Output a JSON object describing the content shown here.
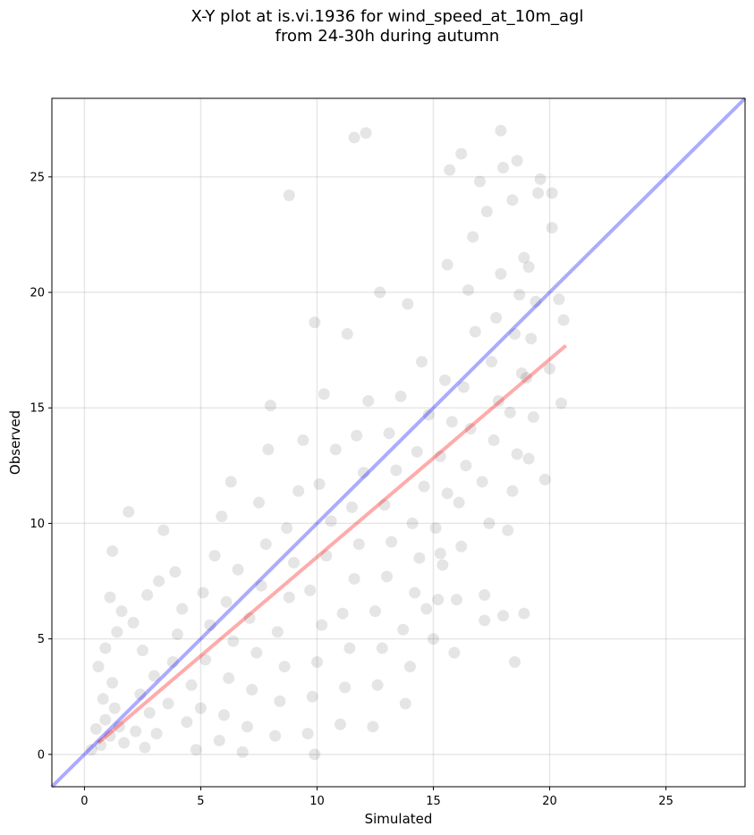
{
  "chart_data": {
    "type": "scatter",
    "title_line1": "X-Y plot at is.vi.1936 for wind_speed_at_10m_agl",
    "title_line2": "from 24-30h during autumn",
    "xlabel": "Simulated",
    "ylabel": "Observed",
    "xlim": [
      -1.4,
      28.4
    ],
    "ylim": [
      -1.4,
      28.4
    ],
    "xticks": [
      0,
      5,
      10,
      15,
      20,
      25
    ],
    "yticks": [
      0,
      5,
      10,
      15,
      20,
      25
    ],
    "grid": true,
    "point_color": "#000000",
    "point_alpha": 0.1,
    "identity_line": {
      "color": "#0000ff",
      "alpha": 0.33,
      "from": [
        -1.4,
        -1.4
      ],
      "to": [
        28.4,
        28.4
      ]
    },
    "regression_line": {
      "color": "#ff0000",
      "alpha": 0.33,
      "from": [
        0.6,
        0.5
      ],
      "to": [
        20.7,
        17.7
      ]
    },
    "points": [
      [
        0.3,
        0.2
      ],
      [
        0.5,
        1.1
      ],
      [
        0.7,
        0.4
      ],
      [
        0.9,
        1.5
      ],
      [
        1.1,
        0.8
      ],
      [
        1.3,
        2.0
      ],
      [
        0.8,
        2.4
      ],
      [
        1.5,
        1.2
      ],
      [
        1.7,
        0.5
      ],
      [
        1.2,
        3.1
      ],
      [
        0.6,
        3.8
      ],
      [
        0.9,
        4.6
      ],
      [
        1.4,
        5.3
      ],
      [
        1.6,
        6.2
      ],
      [
        1.1,
        6.8
      ],
      [
        1.2,
        8.8
      ],
      [
        1.9,
        10.5
      ],
      [
        2.2,
        1.0
      ],
      [
        2.4,
        2.6
      ],
      [
        2.6,
        0.3
      ],
      [
        2.8,
        1.8
      ],
      [
        3.0,
        3.4
      ],
      [
        2.5,
        4.5
      ],
      [
        2.1,
        5.7
      ],
      [
        2.7,
        6.9
      ],
      [
        3.2,
        7.5
      ],
      [
        3.4,
        9.7
      ],
      [
        3.1,
        0.9
      ],
      [
        3.6,
        2.2
      ],
      [
        3.8,
        4.0
      ],
      [
        4.0,
        5.2
      ],
      [
        4.2,
        6.3
      ],
      [
        3.9,
        7.9
      ],
      [
        4.4,
        1.4
      ],
      [
        4.6,
        3.0
      ],
      [
        4.8,
        0.2
      ],
      [
        5.0,
        2.0
      ],
      [
        5.2,
        4.1
      ],
      [
        5.4,
        5.6
      ],
      [
        5.1,
        7.0
      ],
      [
        5.6,
        8.6
      ],
      [
        5.8,
        0.6
      ],
      [
        6.0,
        1.7
      ],
      [
        6.2,
        3.3
      ],
      [
        6.4,
        4.9
      ],
      [
        6.1,
        6.6
      ],
      [
        6.6,
        8.0
      ],
      [
        5.9,
        10.3
      ],
      [
        6.3,
        11.8
      ],
      [
        6.8,
        0.1
      ],
      [
        7.0,
        1.2
      ],
      [
        7.2,
        2.8
      ],
      [
        7.4,
        4.4
      ],
      [
        7.1,
        5.9
      ],
      [
        7.6,
        7.3
      ],
      [
        7.8,
        9.1
      ],
      [
        7.5,
        10.9
      ],
      [
        7.9,
        13.2
      ],
      [
        8.0,
        15.1
      ],
      [
        8.2,
        0.8
      ],
      [
        8.4,
        2.3
      ],
      [
        8.6,
        3.8
      ],
      [
        8.3,
        5.3
      ],
      [
        8.8,
        6.8
      ],
      [
        9.0,
        8.3
      ],
      [
        8.7,
        9.8
      ],
      [
        9.2,
        11.4
      ],
      [
        9.4,
        13.6
      ],
      [
        8.8,
        24.2
      ],
      [
        9.6,
        0.9
      ],
      [
        9.8,
        2.5
      ],
      [
        9.9,
        0.0
      ],
      [
        10.0,
        4.0
      ],
      [
        10.2,
        5.6
      ],
      [
        9.7,
        7.1
      ],
      [
        10.4,
        8.6
      ],
      [
        10.6,
        10.1
      ],
      [
        10.1,
        11.7
      ],
      [
        10.8,
        13.2
      ],
      [
        10.3,
        15.6
      ],
      [
        9.9,
        18.7
      ],
      [
        11.0,
        1.3
      ],
      [
        11.2,
        2.9
      ],
      [
        11.4,
        4.6
      ],
      [
        11.1,
        6.1
      ],
      [
        11.6,
        7.6
      ],
      [
        11.8,
        9.1
      ],
      [
        11.5,
        10.7
      ],
      [
        12.0,
        12.2
      ],
      [
        11.7,
        13.8
      ],
      [
        12.2,
        15.3
      ],
      [
        11.3,
        18.2
      ],
      [
        11.6,
        26.7
      ],
      [
        12.1,
        26.9
      ],
      [
        12.4,
        1.2
      ],
      [
        12.6,
        3.0
      ],
      [
        12.8,
        4.6
      ],
      [
        12.5,
        6.2
      ],
      [
        13.0,
        7.7
      ],
      [
        13.2,
        9.2
      ],
      [
        12.9,
        10.8
      ],
      [
        13.4,
        12.3
      ],
      [
        13.1,
        13.9
      ],
      [
        13.6,
        15.5
      ],
      [
        12.7,
        20.0
      ],
      [
        13.8,
        2.2
      ],
      [
        14.0,
        3.8
      ],
      [
        13.7,
        5.4
      ],
      [
        14.2,
        7.0
      ],
      [
        14.4,
        8.5
      ],
      [
        14.1,
        10.0
      ],
      [
        14.6,
        11.6
      ],
      [
        14.3,
        13.1
      ],
      [
        14.8,
        14.7
      ],
      [
        14.5,
        17.0
      ],
      [
        13.9,
        19.5
      ],
      [
        15.0,
        5.0
      ],
      [
        15.2,
        6.7
      ],
      [
        15.4,
        8.2
      ],
      [
        15.1,
        9.8
      ],
      [
        15.6,
        11.3
      ],
      [
        15.3,
        12.9
      ],
      [
        15.8,
        14.4
      ],
      [
        15.5,
        16.2
      ],
      [
        15.7,
        25.3
      ],
      [
        15.9,
        4.4
      ],
      [
        16.0,
        6.7
      ],
      [
        16.2,
        9.0
      ],
      [
        16.1,
        10.9
      ],
      [
        16.4,
        12.5
      ],
      [
        16.6,
        14.1
      ],
      [
        16.3,
        15.9
      ],
      [
        16.8,
        18.3
      ],
      [
        16.5,
        20.1
      ],
      [
        16.7,
        22.4
      ],
      [
        17.0,
        24.8
      ],
      [
        17.2,
        6.9
      ],
      [
        17.4,
        10.0
      ],
      [
        17.1,
        11.8
      ],
      [
        17.6,
        13.6
      ],
      [
        17.8,
        15.3
      ],
      [
        17.5,
        17.0
      ],
      [
        17.7,
        18.9
      ],
      [
        17.9,
        20.8
      ],
      [
        17.3,
        23.5
      ],
      [
        18.0,
        25.4
      ],
      [
        17.9,
        27.0
      ],
      [
        18.2,
        9.7
      ],
      [
        18.4,
        11.4
      ],
      [
        18.6,
        13.0
      ],
      [
        18.3,
        14.8
      ],
      [
        18.8,
        16.5
      ],
      [
        18.5,
        18.2
      ],
      [
        18.7,
        19.9
      ],
      [
        18.9,
        21.5
      ],
      [
        18.4,
        24.0
      ],
      [
        18.6,
        25.7
      ],
      [
        18.5,
        4.0
      ],
      [
        18.9,
        6.1
      ],
      [
        19.1,
        12.8
      ],
      [
        19.3,
        14.6
      ],
      [
        19.0,
        16.3
      ],
      [
        19.2,
        18.0
      ],
      [
        19.4,
        19.6
      ],
      [
        19.1,
        21.1
      ],
      [
        19.5,
        24.3
      ],
      [
        19.6,
        24.9
      ],
      [
        19.8,
        11.9
      ],
      [
        20.0,
        16.7
      ],
      [
        20.1,
        22.8
      ],
      [
        20.4,
        19.7
      ],
      [
        20.6,
        18.8
      ],
      [
        20.5,
        15.2
      ],
      [
        20.1,
        24.3
      ],
      [
        16.2,
        26.0
      ],
      [
        15.6,
        21.2
      ],
      [
        17.2,
        5.8
      ],
      [
        18.0,
        6.0
      ],
      [
        15.3,
        8.7
      ],
      [
        14.7,
        6.3
      ]
    ]
  }
}
